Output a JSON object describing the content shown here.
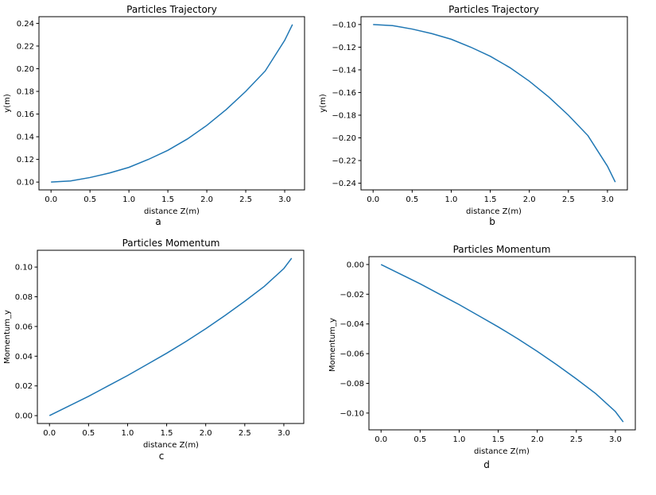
{
  "chart_data": [
    {
      "type": "line",
      "title": "Particles Trajectory",
      "xlabel": "distance Z(m)",
      "ylabel": "y(m)",
      "sublabel": "a",
      "xlim": [
        -0.155,
        3.255
      ],
      "ylim": [
        0.0931,
        0.2459
      ],
      "xticks": [
        0.0,
        0.5,
        1.0,
        1.5,
        2.0,
        2.5,
        3.0
      ],
      "xtick_labels": [
        "0.0",
        "0.5",
        "1.0",
        "1.5",
        "2.0",
        "2.5",
        "3.0"
      ],
      "yticks": [
        0.1,
        0.12,
        0.14,
        0.16,
        0.18,
        0.2,
        0.22,
        0.24
      ],
      "ytick_labels": [
        "0.10",
        "0.12",
        "0.14",
        "0.16",
        "0.18",
        "0.20",
        "0.22",
        "0.24"
      ],
      "series": [
        {
          "x": [
            0.0,
            0.25,
            0.5,
            0.75,
            1.0,
            1.25,
            1.5,
            1.75,
            2.0,
            2.25,
            2.5,
            2.75,
            3.0,
            3.1
          ],
          "y": [
            0.1,
            0.101,
            0.104,
            0.108,
            0.113,
            0.12,
            0.128,
            0.138,
            0.15,
            0.164,
            0.18,
            0.198,
            0.225,
            0.239
          ]
        }
      ]
    },
    {
      "type": "line",
      "title": "Particles Trajectory",
      "xlabel": "distance Z(m)",
      "ylabel": "y(m)",
      "sublabel": "b",
      "xlim": [
        -0.155,
        3.255
      ],
      "ylim": [
        -0.2459,
        -0.0931
      ],
      "xticks": [
        0.0,
        0.5,
        1.0,
        1.5,
        2.0,
        2.5,
        3.0
      ],
      "xtick_labels": [
        "0.0",
        "0.5",
        "1.0",
        "1.5",
        "2.0",
        "2.5",
        "3.0"
      ],
      "yticks": [
        -0.1,
        -0.12,
        -0.14,
        -0.16,
        -0.18,
        -0.2,
        -0.22,
        -0.24
      ],
      "ytick_labels": [
        "−0.10",
        "−0.12",
        "−0.14",
        "−0.16",
        "−0.18",
        "−0.20",
        "−0.22",
        "−0.24"
      ],
      "series": [
        {
          "x": [
            0.0,
            0.25,
            0.5,
            0.75,
            1.0,
            1.25,
            1.5,
            1.75,
            2.0,
            2.25,
            2.5,
            2.75,
            3.0,
            3.1
          ],
          "y": [
            -0.1,
            -0.101,
            -0.104,
            -0.108,
            -0.113,
            -0.12,
            -0.128,
            -0.138,
            -0.15,
            -0.164,
            -0.18,
            -0.198,
            -0.225,
            -0.239
          ]
        }
      ]
    },
    {
      "type": "line",
      "title": "Particles Momentum",
      "xlabel": "distance Z(m)",
      "ylabel": "Momentum_y",
      "sublabel": "c",
      "xlim": [
        -0.155,
        3.255
      ],
      "ylim": [
        -0.0053,
        0.1113
      ],
      "xticks": [
        0.0,
        0.5,
        1.0,
        1.5,
        2.0,
        2.5,
        3.0
      ],
      "xtick_labels": [
        "0.0",
        "0.5",
        "1.0",
        "1.5",
        "2.0",
        "2.5",
        "3.0"
      ],
      "yticks": [
        0.0,
        0.02,
        0.04,
        0.06,
        0.08,
        0.1
      ],
      "ytick_labels": [
        "0.00",
        "0.02",
        "0.04",
        "0.06",
        "0.08",
        "0.10"
      ],
      "series": [
        {
          "x": [
            0.0,
            0.25,
            0.5,
            0.75,
            1.0,
            1.25,
            1.5,
            1.75,
            2.0,
            2.25,
            2.5,
            2.75,
            3.0,
            3.1
          ],
          "y": [
            0.0,
            0.0065,
            0.013,
            0.02,
            0.027,
            0.0345,
            0.042,
            0.05,
            0.0585,
            0.0675,
            0.077,
            0.087,
            0.099,
            0.106
          ]
        }
      ]
    },
    {
      "type": "line",
      "title": "Particles Momentum",
      "xlabel": "distance Z(m)",
      "ylabel": "Momentum_y",
      "sublabel": "d",
      "xlim": [
        -0.155,
        3.255
      ],
      "ylim": [
        -0.1113,
        0.0053
      ],
      "xticks": [
        0.0,
        0.5,
        1.0,
        1.5,
        2.0,
        2.5,
        3.0
      ],
      "xtick_labels": [
        "0.0",
        "0.5",
        "1.0",
        "1.5",
        "2.0",
        "2.5",
        "3.0"
      ],
      "yticks": [
        0.0,
        -0.02,
        -0.04,
        -0.06,
        -0.08,
        -0.1
      ],
      "ytick_labels": [
        "0.00",
        "−0.02",
        "−0.04",
        "−0.06",
        "−0.08",
        "−0.10"
      ],
      "series": [
        {
          "x": [
            0.0,
            0.25,
            0.5,
            0.75,
            1.0,
            1.25,
            1.5,
            1.75,
            2.0,
            2.25,
            2.5,
            2.75,
            3.0,
            3.1
          ],
          "y": [
            0.0,
            -0.0065,
            -0.013,
            -0.02,
            -0.027,
            -0.0345,
            -0.042,
            -0.05,
            -0.0585,
            -0.0675,
            -0.077,
            -0.087,
            -0.099,
            -0.106
          ]
        }
      ]
    }
  ]
}
